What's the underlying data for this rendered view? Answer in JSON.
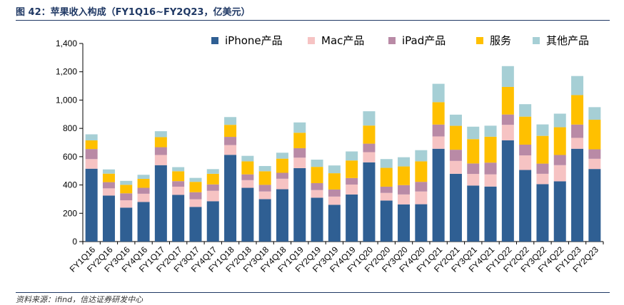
{
  "figure": {
    "title": "图 42：苹果收入构成（FY1Q16~FY2Q23，亿美元）",
    "source": "资料来源：ifind，信达证券研发中心"
  },
  "colors": {
    "iphone": "#2f5f93",
    "mac": "#f6c3c3",
    "ipad": "#b98aa6",
    "services": "#ffc000",
    "other": "#a6cfd5",
    "rule": "#1f3864"
  },
  "chart_data": {
    "type": "bar",
    "stacked": true,
    "title": "",
    "xlabel": "",
    "ylabel": "",
    "ylim": [
      0,
      1400
    ],
    "yticks": [
      "0",
      "200",
      "400",
      "600",
      "800",
      "1,000",
      "1,200",
      "1,400"
    ],
    "grid": false,
    "legend_position": "top",
    "categories": [
      "FY1Q16",
      "FY2Q16",
      "FY3Q16",
      "FY4Q16",
      "FY1Q17",
      "FY2Q17",
      "FY3Q17",
      "FY4Q17",
      "FY1Q18",
      "FY2Q18",
      "FY3Q18",
      "FY4Q18",
      "FY1Q19",
      "FY2Q19",
      "FY3Q19",
      "FY4Q19",
      "FY1Q20",
      "FY2Q20",
      "FY3Q20",
      "FY4Q20",
      "FY1Q21",
      "FY2Q21",
      "FY3Q21",
      "FY4Q21",
      "FY1Q22",
      "FY2Q22",
      "FY3Q22",
      "FY4Q22",
      "FY1Q23",
      "FY2Q23"
    ],
    "series": [
      {
        "name": "iPhone产品",
        "key": "iphone",
        "values": [
          515,
          325,
          240,
          280,
          540,
          330,
          245,
          285,
          613,
          380,
          300,
          370,
          519,
          310,
          260,
          333,
          560,
          290,
          263,
          264,
          656,
          479,
          396,
          389,
          716,
          506,
          406,
          426,
          656,
          513
        ]
      },
      {
        "name": "Mac产品",
        "key": "mac",
        "values": [
          68,
          51,
          52,
          58,
          72,
          58,
          54,
          74,
          69,
          54,
          54,
          74,
          74,
          54,
          58,
          70,
          72,
          54,
          70,
          90,
          87,
          91,
          82,
          86,
          109,
          103,
          73,
          114,
          77,
          72
        ]
      },
      {
        "name": "iPad产品",
        "key": "ipad",
        "values": [
          71,
          44,
          49,
          42,
          55,
          39,
          50,
          45,
          58,
          41,
          47,
          42,
          67,
          49,
          50,
          46,
          60,
          44,
          66,
          68,
          84,
          79,
          74,
          83,
          73,
          76,
          72,
          72,
          94,
          67
        ]
      },
      {
        "name": "服务",
        "key": "services",
        "values": [
          61,
          60,
          60,
          63,
          71,
          70,
          73,
          75,
          85,
          92,
          96,
          100,
          109,
          115,
          115,
          124,
          128,
          133,
          132,
          145,
          158,
          169,
          172,
          183,
          195,
          198,
          196,
          196,
          208,
          209
        ]
      },
      {
        "name": "其他产品",
        "key": "other",
        "values": [
          43,
          30,
          28,
          29,
          42,
          29,
          28,
          33,
          55,
          39,
          37,
          42,
          73,
          51,
          55,
          64,
          101,
          62,
          65,
          79,
          130,
          79,
          88,
          78,
          147,
          88,
          81,
          96,
          135,
          89
        ]
      }
    ]
  }
}
